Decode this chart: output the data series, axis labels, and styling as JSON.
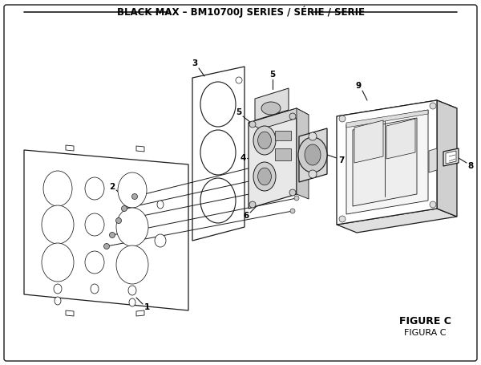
{
  "title": "BLACK MAX – BM10700J SERIES / SÉRIE / SERIE",
  "title_fontsize": 8.5,
  "title_fontweight": "bold",
  "figure_c_text": "FIGURE C",
  "figura_c_text": "FIGURA C",
  "bg_color": "#ffffff",
  "line_color": "#1a1a1a",
  "figsize": [
    6.0,
    4.55
  ],
  "dpi": 100
}
